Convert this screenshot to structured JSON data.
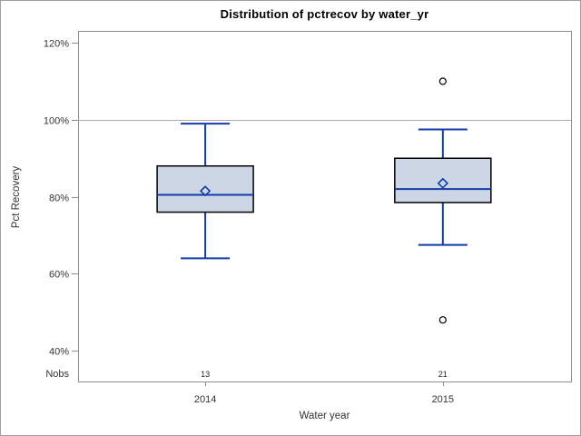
{
  "chart_data": {
    "type": "boxplot",
    "title": "Distribution of pctrecov by water_yr",
    "xlabel": "Water year",
    "ylabel": "Pct Recovery",
    "ylim": [
      32,
      123.1
    ],
    "yticks": [
      {
        "value": 40,
        "label": "40%"
      },
      {
        "value": 60,
        "label": "60%"
      },
      {
        "value": 80,
        "label": "80%"
      },
      {
        "value": 100,
        "label": "100%"
      },
      {
        "value": 120,
        "label": "120%"
      }
    ],
    "reference_line": 100,
    "grid": false,
    "legend": "none",
    "nobs_row_label": "Nobs",
    "groups": [
      {
        "label": "2014",
        "nobs": "13",
        "whisker_low": 64,
        "q1": 76,
        "median": 80.5,
        "q3": 88,
        "whisker_high": 99,
        "mean": 81.5,
        "outliers": []
      },
      {
        "label": "2015",
        "nobs": "21",
        "whisker_low": 67.5,
        "q1": 78.5,
        "median": 82,
        "q3": 90,
        "whisker_high": 97.5,
        "mean": 83.5,
        "outliers": [
          110,
          48
        ]
      }
    ],
    "colors": {
      "box_fill": "#ccd6e5",
      "box_outline": "#000000",
      "line": "#123da6",
      "axis": "#8c8c8c",
      "reference": "#aaaaaa",
      "tick_text": "#333333",
      "outlier": "#000000",
      "background": "#ffffff",
      "frame": "#9f9f9f"
    }
  }
}
